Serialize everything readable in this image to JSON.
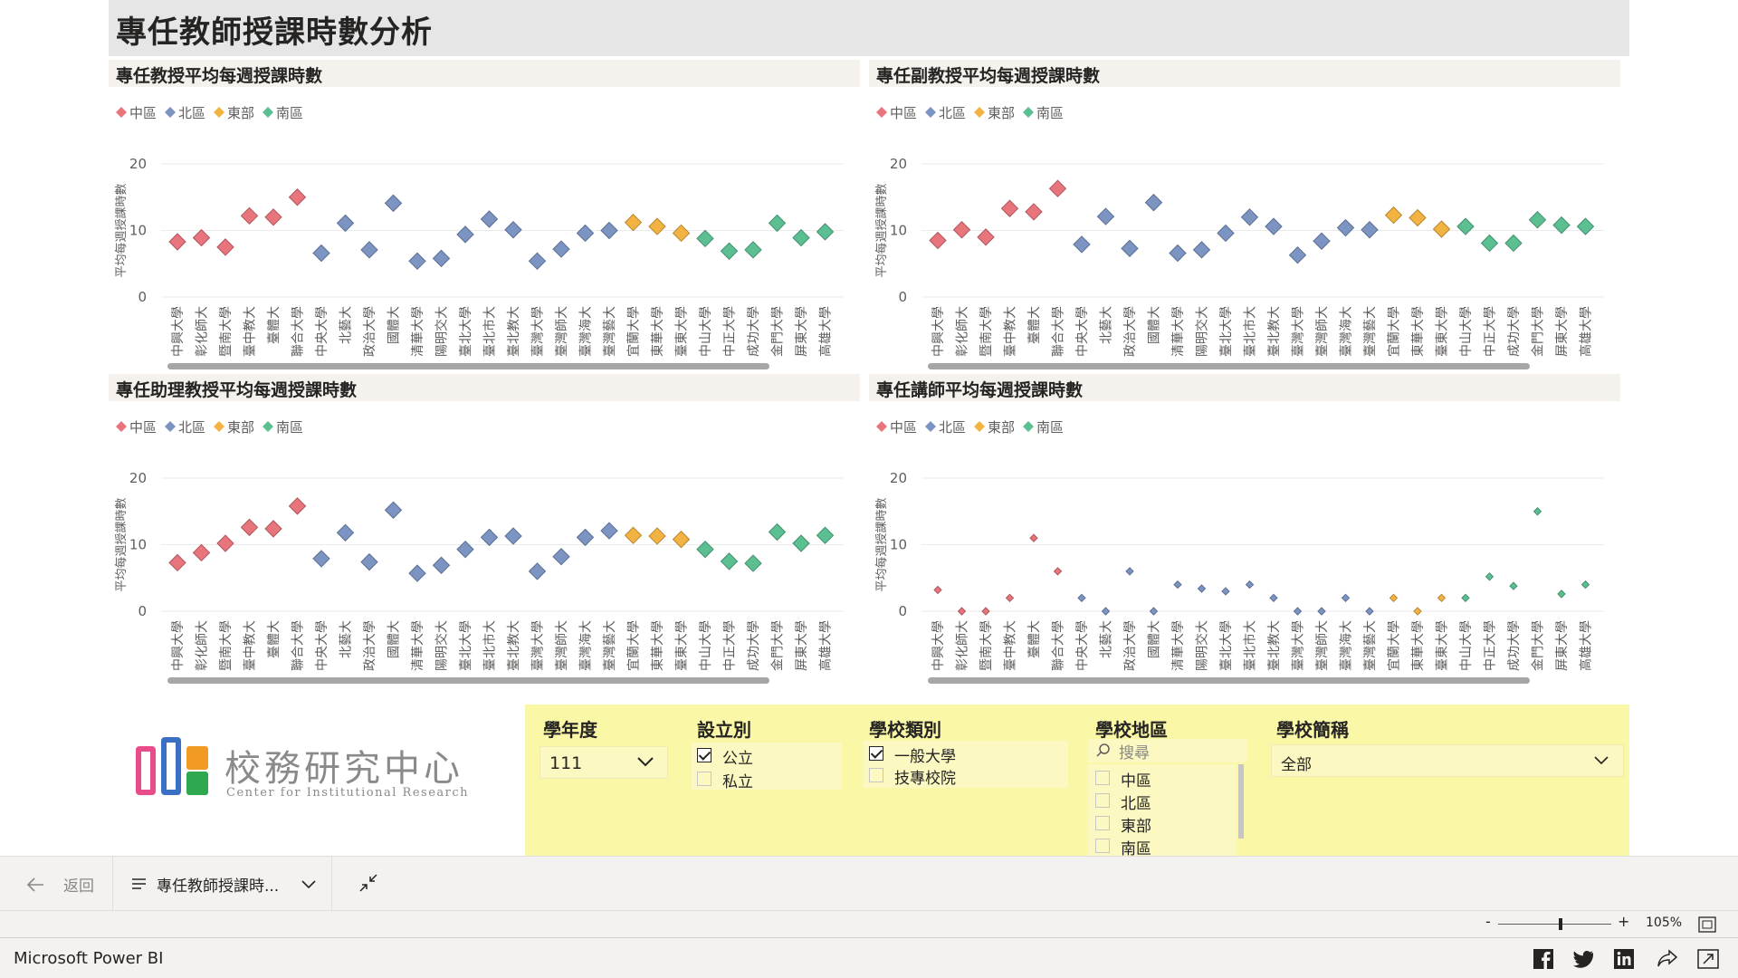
{
  "report": {
    "title": "專任教師授課時數分析"
  },
  "legend": [
    {
      "name": "中區",
      "color": "#e8747c"
    },
    {
      "name": "北區",
      "color": "#7b94c2"
    },
    {
      "name": "東部",
      "color": "#f2b342"
    },
    {
      "name": "南區",
      "color": "#5bbf92"
    }
  ],
  "chart_data": [
    {
      "type": "scatter",
      "title": "專任教授平均每週授課時數",
      "ylabel": "平均每週授課時數",
      "ylim": [
        0,
        20
      ],
      "yticks": [
        "0",
        "10",
        "20"
      ],
      "categories": [
        "中興大學",
        "彰化師大",
        "暨南大學",
        "臺中教大",
        "臺體大",
        "聯合大學",
        "中央大學",
        "北藝大",
        "政治大學",
        "國體大",
        "清華大學",
        "陽明交大",
        "臺北大學",
        "臺北市大",
        "臺北教大",
        "臺灣大學",
        "臺灣師大",
        "臺灣海大",
        "臺灣藝大",
        "宜蘭大學",
        "東華大學",
        "臺東大學",
        "中山大學",
        "中正大學",
        "成功大學",
        "金門大學",
        "屏東大學",
        "高雄大學"
      ],
      "regions": [
        "中區",
        "中區",
        "中區",
        "中區",
        "中區",
        "中區",
        "北區",
        "北區",
        "北區",
        "北區",
        "北區",
        "北區",
        "北區",
        "北區",
        "北區",
        "北區",
        "北區",
        "北區",
        "北區",
        "東部",
        "東部",
        "東部",
        "南區",
        "南區",
        "南區",
        "南區",
        "南區",
        "南區"
      ],
      "values": [
        8.3,
        8.9,
        7.5,
        12.2,
        12.0,
        15.0,
        6.6,
        11.1,
        7.1,
        14.1,
        5.4,
        5.8,
        9.4,
        11.7,
        10.1,
        5.4,
        7.2,
        9.6,
        10.0,
        11.2,
        10.6,
        9.6,
        8.8,
        6.9,
        7.1,
        11.1,
        8.9,
        9.8
      ],
      "sizes": "large"
    },
    {
      "type": "scatter",
      "title": "專任副教授平均每週授課時數",
      "ylabel": "平均每週授課時數",
      "ylim": [
        0,
        20
      ],
      "yticks": [
        "0",
        "10",
        "20"
      ],
      "categories": [
        "中興大學",
        "彰化師大",
        "暨南大學",
        "臺中教大",
        "臺體大",
        "聯合大學",
        "中央大學",
        "北藝大",
        "政治大學",
        "國體大",
        "清華大學",
        "陽明交大",
        "臺北大學",
        "臺北市大",
        "臺北教大",
        "臺灣大學",
        "臺灣師大",
        "臺灣海大",
        "臺灣藝大",
        "宜蘭大學",
        "東華大學",
        "臺東大學",
        "中山大學",
        "中正大學",
        "成功大學",
        "金門大學",
        "屏東大學",
        "高雄大學"
      ],
      "regions": [
        "中區",
        "中區",
        "中區",
        "中區",
        "中區",
        "中區",
        "北區",
        "北區",
        "北區",
        "北區",
        "北區",
        "北區",
        "北區",
        "北區",
        "北區",
        "北區",
        "北區",
        "北區",
        "北區",
        "東部",
        "東部",
        "東部",
        "南區",
        "南區",
        "南區",
        "南區",
        "南區",
        "南區"
      ],
      "values": [
        8.5,
        10.1,
        9.0,
        13.3,
        12.8,
        16.3,
        7.9,
        12.1,
        7.3,
        14.2,
        6.6,
        7.1,
        9.6,
        12.0,
        10.6,
        6.3,
        8.4,
        10.4,
        10.1,
        12.3,
        11.9,
        10.2,
        10.6,
        8.1,
        8.1,
        11.6,
        10.8,
        10.6
      ],
      "sizes": "large"
    },
    {
      "type": "scatter",
      "title": "專任助理教授平均每週授課時數",
      "ylabel": "平均每週授課時數",
      "ylim": [
        0,
        20
      ],
      "yticks": [
        "0",
        "10",
        "20"
      ],
      "categories": [
        "中興大學",
        "彰化師大",
        "暨南大學",
        "臺中教大",
        "臺體大",
        "聯合大學",
        "中央大學",
        "北藝大",
        "政治大學",
        "國體大",
        "清華大學",
        "陽明交大",
        "臺北大學",
        "臺北市大",
        "臺北教大",
        "臺灣大學",
        "臺灣師大",
        "臺灣海大",
        "臺灣藝大",
        "宜蘭大學",
        "東華大學",
        "臺東大學",
        "中山大學",
        "中正大學",
        "成功大學",
        "金門大學",
        "屏東大學",
        "高雄大學"
      ],
      "regions": [
        "中區",
        "中區",
        "中區",
        "中區",
        "中區",
        "中區",
        "北區",
        "北區",
        "北區",
        "北區",
        "北區",
        "北區",
        "北區",
        "北區",
        "北區",
        "北區",
        "北區",
        "北區",
        "北區",
        "東部",
        "東部",
        "東部",
        "南區",
        "南區",
        "南區",
        "南區",
        "南區",
        "南區"
      ],
      "values": [
        7.3,
        8.8,
        10.2,
        12.6,
        12.4,
        15.8,
        7.9,
        11.8,
        7.4,
        15.2,
        5.7,
        6.9,
        9.3,
        11.1,
        11.3,
        6.0,
        8.2,
        11.1,
        12.1,
        11.4,
        11.3,
        10.8,
        9.3,
        7.5,
        7.2,
        11.9,
        10.2,
        11.4
      ],
      "sizes": "large"
    },
    {
      "type": "scatter",
      "title": "專任講師平均每週授課時數",
      "ylabel": "平均每週授課時數",
      "ylim": [
        0,
        20
      ],
      "yticks": [
        "0",
        "10",
        "20"
      ],
      "categories": [
        "中興大學",
        "彰化師大",
        "暨南大學",
        "臺中教大",
        "臺體大",
        "聯合大學",
        "中央大學",
        "北藝大",
        "政治大學",
        "國體大",
        "清華大學",
        "陽明交大",
        "臺北大學",
        "臺北市大",
        "臺北教大",
        "臺灣大學",
        "臺灣師大",
        "臺灣海大",
        "臺灣藝大",
        "宜蘭大學",
        "東華大學",
        "臺東大學",
        "中山大學",
        "中正大學",
        "成功大學",
        "金門大學",
        "屏東大學",
        "高雄大學"
      ],
      "regions": [
        "中區",
        "中區",
        "中區",
        "中區",
        "中區",
        "中區",
        "北區",
        "北區",
        "北區",
        "北區",
        "北區",
        "北區",
        "北區",
        "北區",
        "北區",
        "北區",
        "北區",
        "北區",
        "北區",
        "東部",
        "東部",
        "東部",
        "南區",
        "南區",
        "南區",
        "南區",
        "南區",
        "南區"
      ],
      "values": [
        3.2,
        0,
        0,
        2.0,
        11.0,
        6.0,
        2.0,
        0,
        6.0,
        0,
        4.0,
        3.4,
        3.0,
        4.0,
        2.0,
        0,
        0,
        2.0,
        0,
        2.0,
        0,
        2.0,
        2.0,
        5.2,
        3.8,
        15.0,
        2.6,
        4.0
      ],
      "sizes": "small"
    }
  ],
  "slicers": {
    "year": {
      "title": "學年度",
      "value": "111"
    },
    "establish": {
      "title": "設立別",
      "options": [
        {
          "label": "公立",
          "checked": true
        },
        {
          "label": "私立",
          "checked": false
        }
      ]
    },
    "school_type": {
      "title": "學校類別",
      "options": [
        {
          "label": "一般大學",
          "checked": true
        },
        {
          "label": "技專校院",
          "checked": false
        }
      ]
    },
    "region": {
      "title": "學校地區",
      "search_placeholder": "搜尋",
      "options": [
        {
          "label": "中區",
          "checked": false
        },
        {
          "label": "北區",
          "checked": false
        },
        {
          "label": "東部",
          "checked": false
        },
        {
          "label": "南區",
          "checked": false
        }
      ]
    },
    "school": {
      "title": "學校簡稱",
      "value": "全部"
    }
  },
  "logo": {
    "name": "校務研究中心",
    "subtitle": "Center for Institutional Research"
  },
  "nav": {
    "back_label": "返回",
    "page_label": "專任教師授課時..."
  },
  "zoom": {
    "level": "105%",
    "fraction": 0.55
  },
  "status": {
    "brand": "Microsoft Power BI"
  }
}
